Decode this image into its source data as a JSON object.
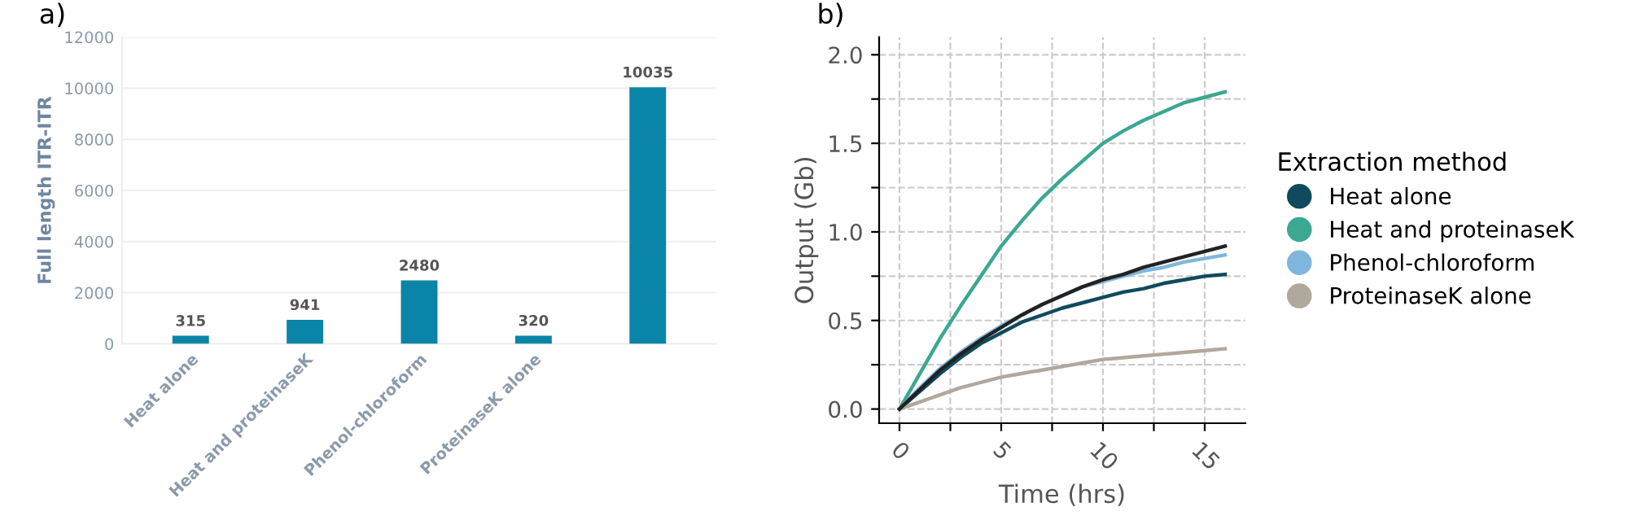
{
  "chart_data": [
    {
      "type": "bar",
      "title": "a)",
      "ylabel": "Full length ITR-ITR",
      "categories": [
        "Heat alone",
        "Heat and proteinaseK",
        "Phenol-chloroform",
        "ProteinaseK alone",
        null
      ],
      "values": [
        315,
        941,
        2480,
        320,
        10035
      ],
      "color": "#0a85a8",
      "ylim": [
        0,
        12000
      ],
      "yticks": [
        0,
        2000,
        4000,
        6000,
        8000,
        10000,
        12000
      ],
      "grid": "y",
      "data_labels": true
    },
    {
      "type": "line",
      "title": "b)",
      "xlabel": "Time (hrs)",
      "ylabel": "Output (Gb)",
      "legend_title": "Extraction method",
      "legend": "right",
      "grid": true,
      "x": [
        0,
        1,
        2,
        3,
        4,
        5,
        6,
        7,
        8,
        9,
        10,
        11,
        12,
        13,
        14,
        15,
        16
      ],
      "series": [
        {
          "name": "Heat alone",
          "color": "#0f4b5c",
          "values": [
            0,
            0.1,
            0.2,
            0.29,
            0.37,
            0.43,
            0.49,
            0.53,
            0.57,
            0.6,
            0.63,
            0.66,
            0.68,
            0.71,
            0.73,
            0.75,
            0.76
          ]
        },
        {
          "name": "Heat and proteinaseK",
          "color": "#3ba891",
          "values": [
            0,
            0.2,
            0.4,
            0.58,
            0.75,
            0.92,
            1.06,
            1.19,
            1.3,
            1.4,
            1.5,
            1.57,
            1.63,
            1.68,
            1.73,
            1.76,
            1.79
          ]
        },
        {
          "name": "Phenol-chloroform",
          "color": "#7fb6dc",
          "values": [
            0,
            0.12,
            0.23,
            0.32,
            0.4,
            0.47,
            0.53,
            0.59,
            0.64,
            0.69,
            0.72,
            0.75,
            0.78,
            0.8,
            0.83,
            0.85,
            0.87
          ]
        },
        {
          "name": "ProteinaseK alone",
          "color": "#b0a89c",
          "values": [
            0,
            0.04,
            0.08,
            0.12,
            0.15,
            0.18,
            0.2,
            0.22,
            0.24,
            0.26,
            0.28,
            0.29,
            0.3,
            0.31,
            0.32,
            0.33,
            0.34
          ]
        },
        {
          "color": "#222222",
          "values": [
            0,
            0.11,
            0.22,
            0.31,
            0.39,
            0.46,
            0.53,
            0.59,
            0.64,
            0.69,
            0.73,
            0.76,
            0.8,
            0.83,
            0.86,
            0.89,
            0.92
          ]
        }
      ],
      "xlim": [
        -1,
        17
      ],
      "xticks": [
        0,
        {
          "value": 2.5,
          "label": null
        },
        5,
        {
          "value": 7.5,
          "label": null
        },
        10,
        {
          "value": 12.5,
          "label": null
        },
        15
      ],
      "ylim": [
        -0.08,
        2.1
      ],
      "yticks": [
        {
          "value": 0,
          "label": "0.0"
        },
        {
          "value": 0.25,
          "label": null
        },
        {
          "value": 0.5,
          "label": "0.5"
        },
        {
          "value": 0.75,
          "label": null
        },
        {
          "value": 1,
          "label": "1.0"
        },
        {
          "value": 1.25,
          "label": null
        },
        {
          "value": 1.5,
          "label": "1.5"
        },
        {
          "value": 1.75,
          "label": null
        },
        {
          "value": 2,
          "label": "2.0"
        }
      ]
    }
  ]
}
